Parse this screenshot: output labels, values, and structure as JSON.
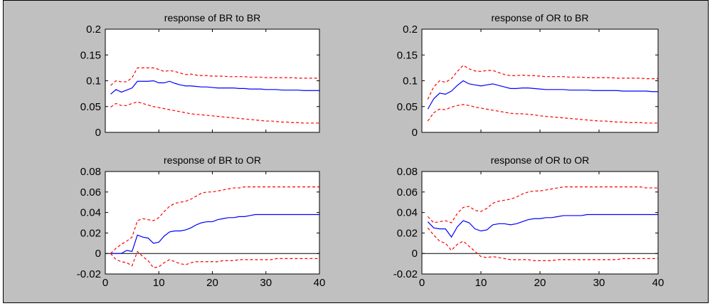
{
  "figure": {
    "background": "#c0c0c0"
  },
  "chart_data": [
    {
      "type": "line",
      "title": "response of BR to BR",
      "xlim": [
        0,
        40
      ],
      "ylim": [
        0,
        0.2
      ],
      "xticks": [],
      "xtick_labels": [],
      "yticks": [
        0,
        0.05,
        0.1,
        0.15,
        0.2
      ],
      "ytick_labels": [
        "0",
        "0.05",
        "0.1",
        "0.15",
        "0.2"
      ],
      "zero_line": false,
      "x": [
        1,
        2,
        3,
        4,
        5,
        6,
        7,
        8,
        9,
        10,
        11,
        12,
        13,
        14,
        15,
        16,
        17,
        18,
        19,
        20,
        21,
        22,
        23,
        24,
        25,
        26,
        27,
        28,
        29,
        30,
        31,
        32,
        33,
        34,
        35,
        36,
        37,
        38,
        39,
        40
      ],
      "series": [
        {
          "color": "#ff0000",
          "style": "dashed",
          "values": [
            0.091,
            0.1,
            0.098,
            0.098,
            0.106,
            0.125,
            0.125,
            0.125,
            0.125,
            0.122,
            0.118,
            0.12,
            0.118,
            0.115,
            0.112,
            0.113,
            0.111,
            0.11,
            0.11,
            0.109,
            0.109,
            0.109,
            0.108,
            0.108,
            0.108,
            0.108,
            0.107,
            0.107,
            0.107,
            0.106,
            0.106,
            0.106,
            0.106,
            0.106,
            0.106,
            0.105,
            0.105,
            0.105,
            0.105,
            0.105
          ]
        },
        {
          "color": "#0000ff",
          "style": "solid",
          "values": [
            0.074,
            0.083,
            0.078,
            0.082,
            0.086,
            0.099,
            0.099,
            0.099,
            0.1,
            0.096,
            0.096,
            0.099,
            0.095,
            0.092,
            0.09,
            0.09,
            0.089,
            0.088,
            0.088,
            0.087,
            0.086,
            0.086,
            0.086,
            0.086,
            0.085,
            0.085,
            0.084,
            0.084,
            0.084,
            0.083,
            0.083,
            0.083,
            0.082,
            0.082,
            0.082,
            0.082,
            0.081,
            0.081,
            0.081,
            0.081
          ]
        },
        {
          "color": "#ff0000",
          "style": "dashed",
          "values": [
            0.049,
            0.056,
            0.052,
            0.052,
            0.056,
            0.059,
            0.056,
            0.053,
            0.05,
            0.048,
            0.046,
            0.044,
            0.042,
            0.04,
            0.038,
            0.036,
            0.035,
            0.034,
            0.033,
            0.032,
            0.031,
            0.03,
            0.029,
            0.028,
            0.027,
            0.026,
            0.025,
            0.024,
            0.023,
            0.022,
            0.022,
            0.021,
            0.02,
            0.02,
            0.019,
            0.019,
            0.018,
            0.018,
            0.018,
            0.018
          ]
        }
      ]
    },
    {
      "type": "line",
      "title": "response of OR to BR",
      "xlim": [
        0,
        40
      ],
      "ylim": [
        0,
        0.2
      ],
      "xticks": [],
      "xtick_labels": [],
      "yticks": [
        0,
        0.05,
        0.1,
        0.15,
        0.2
      ],
      "ytick_labels": [
        "0",
        "0.05",
        "0.1",
        "0.15",
        "0.2"
      ],
      "zero_line": false,
      "x": [
        1,
        2,
        3,
        4,
        5,
        6,
        7,
        8,
        9,
        10,
        11,
        12,
        13,
        14,
        15,
        16,
        17,
        18,
        19,
        20,
        21,
        22,
        23,
        24,
        25,
        26,
        27,
        28,
        29,
        30,
        31,
        32,
        33,
        34,
        35,
        36,
        37,
        38,
        39,
        40
      ],
      "series": [
        {
          "color": "#ff0000",
          "style": "dashed",
          "values": [
            0.064,
            0.088,
            0.1,
            0.097,
            0.104,
            0.118,
            0.13,
            0.123,
            0.119,
            0.118,
            0.12,
            0.12,
            0.116,
            0.112,
            0.11,
            0.11,
            0.111,
            0.11,
            0.11,
            0.109,
            0.108,
            0.108,
            0.108,
            0.108,
            0.107,
            0.107,
            0.107,
            0.106,
            0.106,
            0.106,
            0.106,
            0.106,
            0.105,
            0.105,
            0.105,
            0.105,
            0.105,
            0.104,
            0.104,
            0.104
          ]
        },
        {
          "color": "#0000ff",
          "style": "solid",
          "values": [
            0.045,
            0.065,
            0.076,
            0.074,
            0.08,
            0.091,
            0.1,
            0.094,
            0.092,
            0.09,
            0.092,
            0.094,
            0.091,
            0.088,
            0.085,
            0.085,
            0.086,
            0.086,
            0.085,
            0.084,
            0.083,
            0.083,
            0.083,
            0.083,
            0.082,
            0.082,
            0.082,
            0.082,
            0.081,
            0.081,
            0.081,
            0.081,
            0.081,
            0.08,
            0.08,
            0.08,
            0.08,
            0.08,
            0.079,
            0.079
          ]
        },
        {
          "color": "#ff0000",
          "style": "dashed",
          "values": [
            0.022,
            0.038,
            0.045,
            0.044,
            0.049,
            0.052,
            0.054,
            0.052,
            0.049,
            0.047,
            0.045,
            0.043,
            0.041,
            0.039,
            0.037,
            0.036,
            0.036,
            0.035,
            0.034,
            0.032,
            0.031,
            0.03,
            0.029,
            0.028,
            0.027,
            0.026,
            0.025,
            0.024,
            0.023,
            0.022,
            0.022,
            0.021,
            0.02,
            0.02,
            0.019,
            0.019,
            0.019,
            0.018,
            0.018,
            0.018
          ]
        }
      ]
    },
    {
      "type": "line",
      "title": "response of BR to OR",
      "xlim": [
        0,
        40
      ],
      "ylim": [
        -0.02,
        0.08
      ],
      "xticks": [
        0,
        10,
        20,
        30,
        40
      ],
      "xtick_labels": [
        "0",
        "10",
        "20",
        "30",
        "40"
      ],
      "yticks": [
        -0.02,
        0,
        0.02,
        0.04,
        0.06,
        0.08
      ],
      "ytick_labels": [
        "-0.02",
        "0",
        "0.02",
        "0.04",
        "0.06",
        "0.08"
      ],
      "zero_line": true,
      "x": [
        1,
        2,
        3,
        4,
        5,
        6,
        7,
        8,
        9,
        10,
        11,
        12,
        13,
        14,
        15,
        16,
        17,
        18,
        19,
        20,
        21,
        22,
        23,
        24,
        25,
        26,
        27,
        28,
        29,
        30,
        31,
        32,
        33,
        34,
        35,
        36,
        37,
        38,
        39,
        40
      ],
      "series": [
        {
          "color": "#ff0000",
          "style": "dashed",
          "values": [
            0.0,
            0.005,
            0.009,
            0.012,
            0.016,
            0.032,
            0.034,
            0.033,
            0.032,
            0.035,
            0.041,
            0.046,
            0.049,
            0.05,
            0.051,
            0.053,
            0.056,
            0.059,
            0.06,
            0.06,
            0.061,
            0.062,
            0.063,
            0.064,
            0.064,
            0.065,
            0.065,
            0.065,
            0.065,
            0.065,
            0.065,
            0.065,
            0.065,
            0.065,
            0.065,
            0.065,
            0.065,
            0.065,
            0.065,
            0.065
          ]
        },
        {
          "color": "#0000ff",
          "style": "solid",
          "values": [
            0.0,
            0.0,
            0.0,
            0.003,
            0.002,
            0.018,
            0.016,
            0.015,
            0.01,
            0.011,
            0.017,
            0.021,
            0.022,
            0.022,
            0.023,
            0.025,
            0.028,
            0.03,
            0.031,
            0.031,
            0.033,
            0.034,
            0.035,
            0.035,
            0.036,
            0.036,
            0.037,
            0.038,
            0.038,
            0.038,
            0.038,
            0.038,
            0.038,
            0.038,
            0.038,
            0.038,
            0.038,
            0.038,
            0.038,
            0.038
          ]
        },
        {
          "color": "#ff0000",
          "style": "dashed",
          "values": [
            0.0,
            -0.006,
            -0.008,
            -0.009,
            -0.012,
            0.002,
            -0.003,
            -0.007,
            -0.014,
            -0.013,
            -0.009,
            -0.006,
            -0.008,
            -0.01,
            -0.011,
            -0.009,
            -0.008,
            -0.008,
            -0.008,
            -0.008,
            -0.008,
            -0.007,
            -0.007,
            -0.007,
            -0.006,
            -0.006,
            -0.006,
            -0.006,
            -0.006,
            -0.006,
            -0.006,
            -0.005,
            -0.005,
            -0.005,
            -0.005,
            -0.005,
            -0.005,
            -0.005,
            -0.005,
            -0.005
          ]
        }
      ]
    },
    {
      "type": "line",
      "title": "response of OR to OR",
      "xlim": [
        0,
        40
      ],
      "ylim": [
        -0.02,
        0.08
      ],
      "xticks": [
        0,
        10,
        20,
        30,
        40
      ],
      "xtick_labels": [
        "0",
        "10",
        "20",
        "30",
        "40"
      ],
      "yticks": [
        -0.02,
        0,
        0.02,
        0.04,
        0.06,
        0.08
      ],
      "ytick_labels": [
        "-0.02",
        "0",
        "0.02",
        "0.04",
        "0.06",
        "0.08"
      ],
      "zero_line": true,
      "x": [
        1,
        2,
        3,
        4,
        5,
        6,
        7,
        8,
        9,
        10,
        11,
        12,
        13,
        14,
        15,
        16,
        17,
        18,
        19,
        20,
        21,
        22,
        23,
        24,
        25,
        26,
        27,
        28,
        29,
        30,
        31,
        32,
        33,
        34,
        35,
        36,
        37,
        38,
        39,
        40
      ],
      "series": [
        {
          "color": "#ff0000",
          "style": "dashed",
          "values": [
            0.036,
            0.03,
            0.031,
            0.032,
            0.03,
            0.039,
            0.045,
            0.046,
            0.042,
            0.041,
            0.044,
            0.049,
            0.051,
            0.052,
            0.053,
            0.055,
            0.058,
            0.06,
            0.061,
            0.061,
            0.062,
            0.063,
            0.064,
            0.065,
            0.065,
            0.065,
            0.065,
            0.065,
            0.065,
            0.065,
            0.065,
            0.065,
            0.065,
            0.065,
            0.065,
            0.065,
            0.065,
            0.064,
            0.064,
            0.064
          ]
        },
        {
          "color": "#0000ff",
          "style": "solid",
          "values": [
            0.031,
            0.025,
            0.024,
            0.024,
            0.016,
            0.026,
            0.032,
            0.03,
            0.024,
            0.022,
            0.023,
            0.028,
            0.029,
            0.029,
            0.028,
            0.029,
            0.031,
            0.033,
            0.034,
            0.034,
            0.035,
            0.035,
            0.036,
            0.037,
            0.037,
            0.037,
            0.037,
            0.038,
            0.038,
            0.038,
            0.038,
            0.038,
            0.038,
            0.038,
            0.038,
            0.038,
            0.038,
            0.038,
            0.038,
            0.038
          ]
        },
        {
          "color": "#ff0000",
          "style": "dashed",
          "values": [
            0.025,
            0.018,
            0.012,
            0.01,
            0.003,
            0.009,
            0.012,
            0.007,
            0.002,
            -0.003,
            -0.004,
            -0.003,
            -0.004,
            -0.005,
            -0.006,
            -0.006,
            -0.006,
            -0.006,
            -0.007,
            -0.007,
            -0.007,
            -0.007,
            -0.006,
            -0.006,
            -0.006,
            -0.006,
            -0.006,
            -0.006,
            -0.006,
            -0.006,
            -0.006,
            -0.006,
            -0.006,
            -0.005,
            -0.005,
            -0.005,
            -0.005,
            -0.005,
            -0.005,
            -0.005
          ]
        }
      ]
    }
  ]
}
